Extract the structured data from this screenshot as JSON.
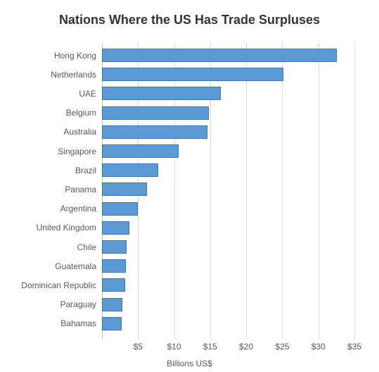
{
  "chart": {
    "type": "bar-horizontal",
    "title": "Nations Where the US Has Trade Surpluses",
    "title_fontsize": 18,
    "title_color": "#333333",
    "x_axis_title": "Billions US$",
    "x_axis_title_fontsize": 12,
    "tick_fontsize": 12,
    "label_color": "#595959",
    "background_color": "#ffffff",
    "grid_color": "#d9d9d9",
    "axis_line_color": "#bfbfbf",
    "bar_fill": "#5b9bd5",
    "bar_border": "#3a75af",
    "xlim": [
      0,
      35
    ],
    "xtick_step": 5,
    "x_tick_labels": [
      "",
      "$5",
      "$10",
      "$15",
      "$20",
      "$25",
      "$30",
      "$35"
    ],
    "categories": [
      "Hong Kong",
      "Netherlands",
      "UAE",
      "Belgium",
      "Australia",
      "Singapore",
      "Brazil",
      "Panama",
      "Argentina",
      "United Kingdom",
      "Chile",
      "Guatemala",
      "Dominican Republic",
      "Paraguay",
      "Bahamas"
    ],
    "values": [
      32.6,
      25.2,
      16.5,
      14.8,
      14.6,
      10.6,
      7.8,
      6.2,
      5.0,
      3.8,
      3.4,
      3.3,
      3.2,
      2.8,
      2.7
    ]
  }
}
